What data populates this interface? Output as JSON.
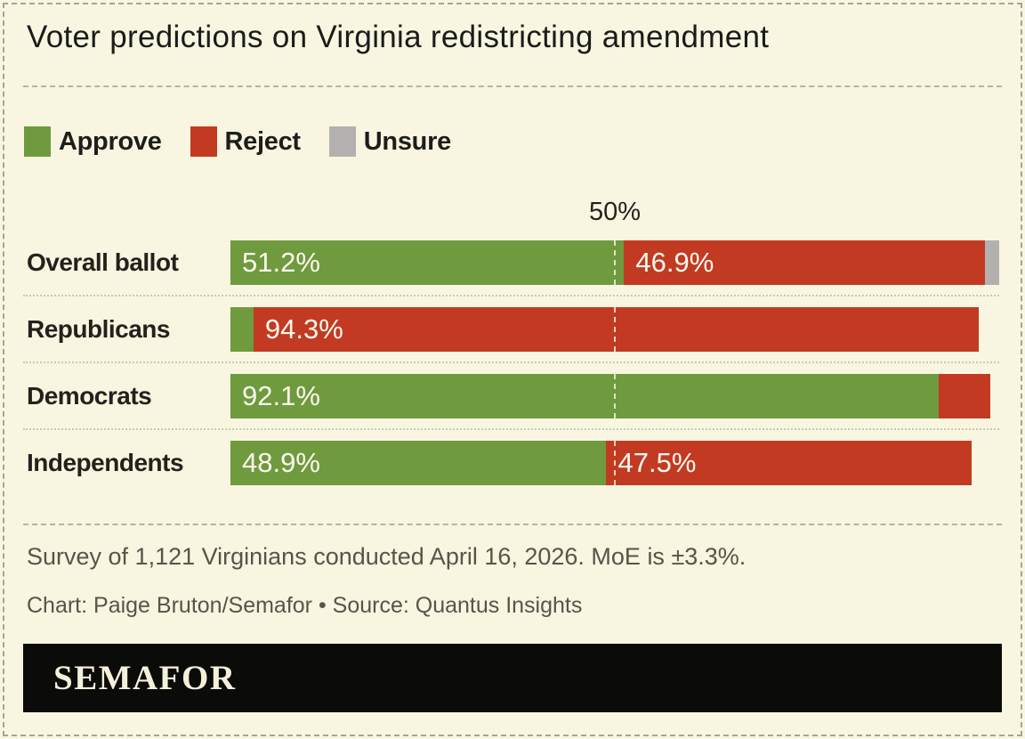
{
  "title": "Voter predictions on Virginia redistricting amendment",
  "footer": {
    "survey_note": "Survey of 1,121 Virginians conducted April 16, 2026. MoE is ±3.3%.",
    "credit": "Chart: Paige Bruton/Semafor • Source: Quantus Insights"
  },
  "logo": {
    "text": "SEMAFOR"
  },
  "colors": {
    "approve": "#6f9a3e",
    "reject": "#c23a22",
    "unsure": "#b3b1af",
    "background": "#f8f6e0",
    "logo_bar": "#0b0b09",
    "text_dark": "#1b1b1b",
    "text_muted": "#56544b"
  },
  "chart_data": {
    "type": "bar",
    "orientation": "horizontal",
    "stacked": true,
    "xlim": [
      0,
      100
    ],
    "axis_marker": {
      "label": "50%",
      "value": 50
    },
    "grid": false,
    "legend_position": "top",
    "legend": [
      {
        "name": "Approve",
        "color": "#6f9a3e"
      },
      {
        "name": "Reject",
        "color": "#c23a22"
      },
      {
        "name": "Unsure",
        "color": "#b3b1af"
      }
    ],
    "categories": [
      "Overall ballot",
      "Republicans",
      "Democrats",
      "Independents"
    ],
    "rows": [
      {
        "category": "Overall ballot",
        "segments": [
          {
            "series": "Approve",
            "value": 51.2,
            "label": "51.2%"
          },
          {
            "series": "Reject",
            "value": 46.9,
            "label": "46.9%"
          },
          {
            "series": "Unsure",
            "value": 1.9,
            "label": ""
          }
        ]
      },
      {
        "category": "Republicans",
        "segments": [
          {
            "series": "Approve",
            "value": 3.0,
            "label": ""
          },
          {
            "series": "Reject",
            "value": 94.3,
            "label": "94.3%"
          }
        ]
      },
      {
        "category": "Democrats",
        "segments": [
          {
            "series": "Approve",
            "value": 92.1,
            "label": "92.1%"
          },
          {
            "series": "Reject",
            "value": 6.8,
            "label": ""
          }
        ]
      },
      {
        "category": "Independents",
        "segments": [
          {
            "series": "Approve",
            "value": 48.9,
            "label": "48.9%"
          },
          {
            "series": "Reject",
            "value": 47.5,
            "label": "47.5%"
          }
        ]
      }
    ]
  }
}
